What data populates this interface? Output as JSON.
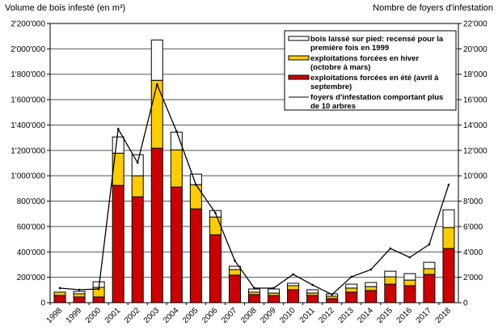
{
  "chart_data": {
    "type": "bar",
    "subtype": "stacked bar with line on secondary axis",
    "ylabel": "Volume de bois infesté (en m³)",
    "y2label": "Nombre de foyers d'infestation",
    "ylim": [
      0,
      2200000
    ],
    "y2lim": [
      0,
      22000
    ],
    "yticks": [
      "0",
      "200'000",
      "400'000",
      "600'000",
      "800'000",
      "1'000'000",
      "1'200'000",
      "1'400'000",
      "1'600'000",
      "1'800'000",
      "2'000'000",
      "2'200'000"
    ],
    "y2ticks": [
      "0",
      "2'000",
      "4'000",
      "6'000",
      "8'000",
      "10'000",
      "12'000",
      "14'000",
      "16'000",
      "18'000",
      "20'000",
      "22'000"
    ],
    "grid": true,
    "legend_placement": "top-right",
    "categories": [
      "1998",
      "1999",
      "2000",
      "2001",
      "2002",
      "2003",
      "2004",
      "2005",
      "2006",
      "2007",
      "2008",
      "2009",
      "2010",
      "2011",
      "2012",
      "2013",
      "2014",
      "2015",
      "2016",
      "2017",
      "2018"
    ],
    "series": [
      {
        "name": "exploitations forcées en été (avril à septembre)",
        "color": "#cc0000",
        "kind": "bar",
        "values": [
          57000,
          45000,
          45000,
          924000,
          834000,
          1217000,
          911000,
          739000,
          535000,
          217000,
          64000,
          57000,
          102000,
          57000,
          32000,
          83000,
          96000,
          146000,
          134000,
          223000,
          427000
        ]
      },
      {
        "name": "exploitations forcées en hiver (octobre à mars)",
        "color": "#ffcc00",
        "kind": "bar",
        "values": [
          26000,
          25000,
          76000,
          254000,
          166000,
          535000,
          293000,
          191000,
          140000,
          44000,
          19000,
          19000,
          32000,
          19000,
          19000,
          32000,
          31000,
          58000,
          44000,
          45000,
          165000
        ]
      },
      {
        "name": "bois laissé sur pied: recensé pour la première fois en 1999",
        "color": "#ffffff",
        "kind": "bar",
        "values": [
          0,
          19000,
          44000,
          128000,
          166000,
          318000,
          140000,
          83000,
          51000,
          26000,
          25000,
          32000,
          19000,
          26000,
          19000,
          31000,
          32000,
          44000,
          51000,
          50000,
          140000
        ]
      },
      {
        "name": "foyers d'infestation comportant plus de 10 arbres",
        "color": "#000000",
        "kind": "line",
        "axis": "secondary",
        "values": [
          1150,
          1020,
          1080,
          13690,
          11020,
          17200,
          13500,
          9300,
          7070,
          3310,
          1150,
          1150,
          2230,
          1400,
          640,
          2040,
          2610,
          4270,
          3570,
          4590,
          9300
        ]
      }
    ]
  }
}
